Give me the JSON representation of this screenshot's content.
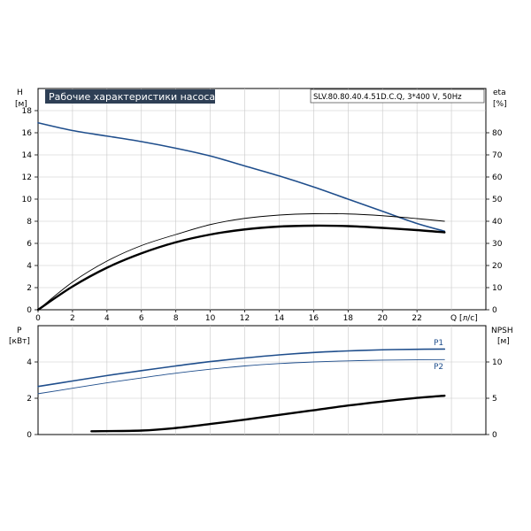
{
  "title_box": "Рабочие характеристики насоса",
  "model_box": "SLV.80.80.40.4.51D.C.Q, 3*400 V, 50Hz",
  "colors": {
    "blue": "#1f4e8c",
    "black": "#000000",
    "thin": "#000000",
    "title_bg": "#2e3f55",
    "grid": "#c8c8c8"
  },
  "chart_data": [
    {
      "type": "line",
      "panel": "top",
      "x_label": "Q [л/с]",
      "y_left_label": [
        "H",
        "[м]"
      ],
      "y_right_label": [
        "eta",
        "[%]"
      ],
      "x_range": [
        0,
        26
      ],
      "y_left_range": [
        0,
        20
      ],
      "y_right_range": [
        0,
        100
      ],
      "x_ticks": [
        0,
        2,
        4,
        6,
        8,
        10,
        12,
        14,
        16,
        18,
        20,
        22
      ],
      "y_left_ticks": [
        0,
        2,
        4,
        6,
        8,
        10,
        12,
        14,
        16,
        18
      ],
      "y_right_ticks": [
        0,
        10,
        20,
        30,
        40,
        50,
        60,
        70,
        80
      ],
      "grid": true,
      "series": [
        {
          "axis": "left",
          "color": "blue",
          "width": 1.6,
          "x": [
            0,
            2,
            4,
            6,
            8,
            10,
            12,
            14,
            16,
            18,
            20,
            22,
            23.6
          ],
          "y": [
            16.9,
            16.2,
            15.7,
            15.2,
            14.6,
            13.9,
            13.0,
            12.1,
            11.1,
            10.0,
            8.9,
            7.8,
            7.1
          ]
        },
        {
          "axis": "right",
          "color": "black",
          "width": 2.4,
          "x": [
            0,
            2,
            4,
            6,
            8,
            10,
            12,
            14,
            16,
            18,
            20,
            22,
            23.6
          ],
          "y": [
            0,
            10.5,
            19,
            25.5,
            30.5,
            34.0,
            36.3,
            37.6,
            38.0,
            37.8,
            37.0,
            36.0,
            35.0
          ]
        },
        {
          "axis": "right",
          "color": "thin",
          "width": 0.9,
          "x": [
            0,
            2,
            4,
            6,
            8,
            10,
            12,
            14,
            16,
            18,
            20,
            22,
            23.6
          ],
          "y": [
            0,
            12.5,
            22,
            29,
            34,
            38.5,
            41.3,
            42.8,
            43.4,
            43.3,
            42.5,
            41.2,
            40.0
          ]
        }
      ]
    },
    {
      "type": "line",
      "panel": "bottom",
      "y_left_label": [
        "P",
        "[кВт]"
      ],
      "y_right_label": [
        "NPSH",
        "[м]"
      ],
      "x_range": [
        0,
        26
      ],
      "y_left_range": [
        0,
        6
      ],
      "y_right_range": [
        0,
        15
      ],
      "y_left_ticks": [
        0,
        2,
        4
      ],
      "y_right_ticks": [
        0,
        5,
        10
      ],
      "grid": true,
      "series": [
        {
          "name": "P1",
          "axis": "left",
          "color": "blue",
          "width": 1.6,
          "x": [
            0,
            2,
            4,
            6,
            8,
            10,
            12,
            14,
            16,
            18,
            20,
            22,
            23.6
          ],
          "y": [
            2.65,
            2.95,
            3.25,
            3.52,
            3.78,
            4.02,
            4.22,
            4.39,
            4.52,
            4.61,
            4.67,
            4.7,
            4.71
          ]
        },
        {
          "name": "P2",
          "axis": "left",
          "color": "blue",
          "width": 0.9,
          "x": [
            0,
            2,
            4,
            6,
            8,
            10,
            12,
            14,
            16,
            18,
            20,
            22,
            23.6
          ],
          "y": [
            2.25,
            2.55,
            2.85,
            3.12,
            3.38,
            3.6,
            3.78,
            3.91,
            4.0,
            4.06,
            4.1,
            4.12,
            4.13
          ]
        },
        {
          "axis": "right",
          "color": "black",
          "width": 2.4,
          "x": [
            3.1,
            6,
            8,
            10,
            12,
            14,
            16,
            18,
            20,
            22,
            23.6
          ],
          "y": [
            0.45,
            0.55,
            0.9,
            1.45,
            2.05,
            2.7,
            3.35,
            4.0,
            4.55,
            5.05,
            5.35
          ]
        }
      ]
    }
  ]
}
